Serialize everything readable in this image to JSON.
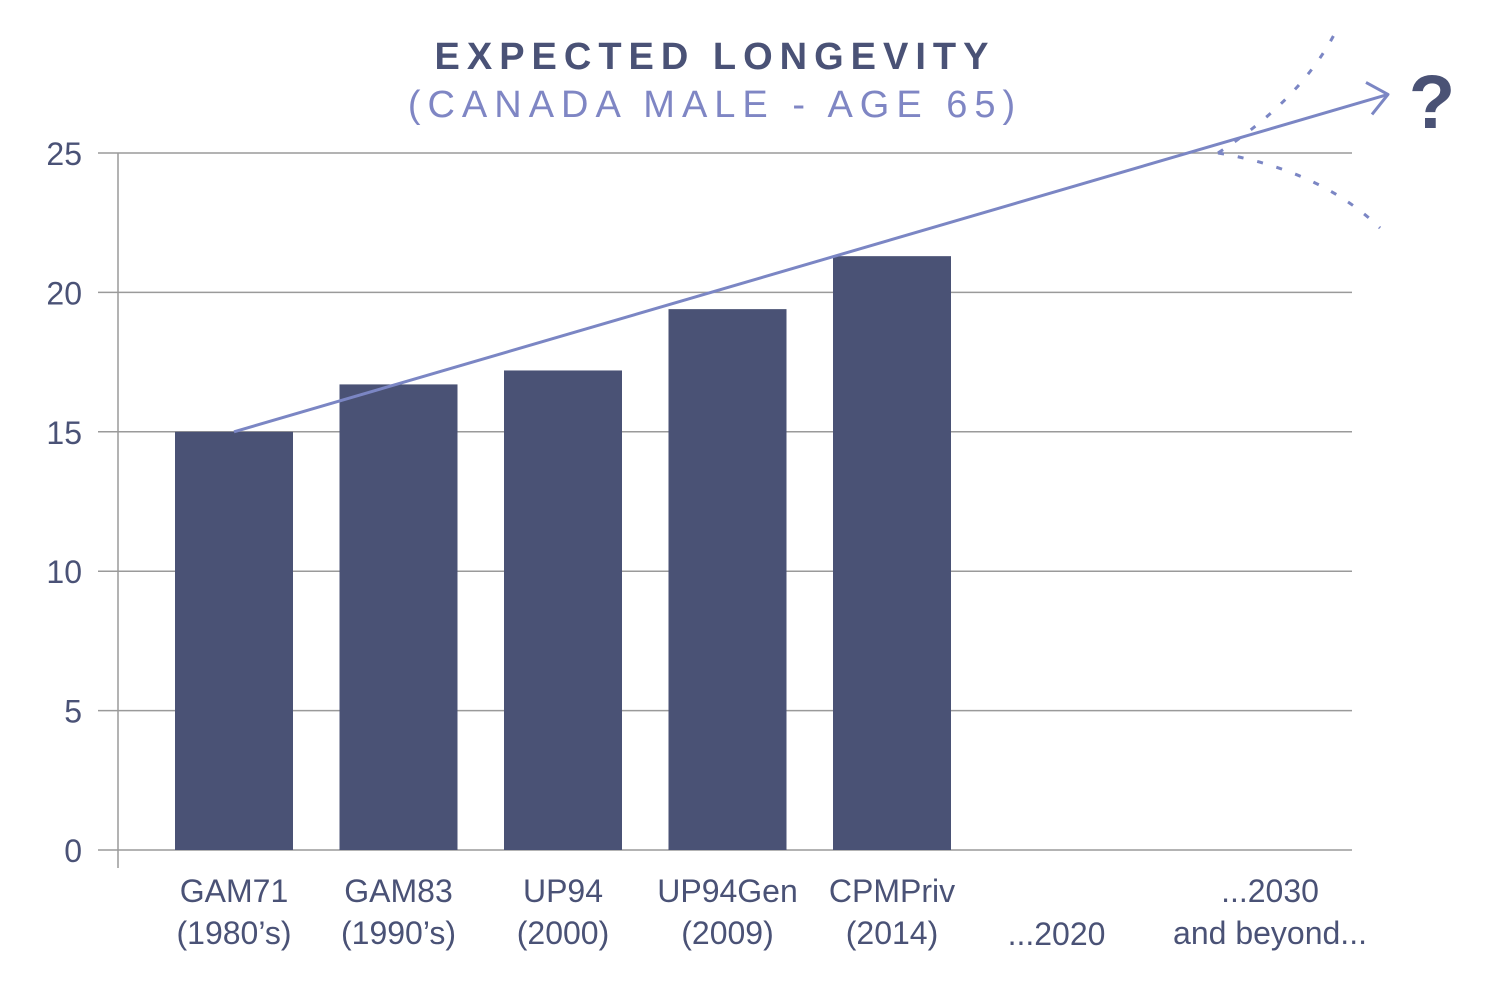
{
  "title": "EXPECTED LONGEVITY",
  "subtitle": "(CANADA MALE - AGE 65)",
  "colors": {
    "bar": "#4a5275",
    "trend": "#7b86c4",
    "grid": "#9a9a9a",
    "text": "#4a5276",
    "subtitle": "#7f86c4"
  },
  "chart_data": {
    "type": "bar",
    "title": "EXPECTED LONGEVITY",
    "subtitle": "(CANADA MALE - AGE 65)",
    "xlabel": "",
    "ylabel": "",
    "ylim": [
      0,
      25
    ],
    "yticks": [
      "0",
      "5",
      "10",
      "15",
      "20",
      "25"
    ],
    "grid": true,
    "legend": "none",
    "categories": [
      [
        "GAM71",
        "(1980’s)"
      ],
      [
        "GAM83",
        "(1990’s)"
      ],
      [
        "UP94",
        "(2000)"
      ],
      [
        "UP94Gen",
        "(2009)"
      ],
      [
        "CPMPriv",
        "(2014)"
      ],
      [
        "...2020"
      ],
      [
        "...2030",
        "and beyond..."
      ]
    ],
    "values": [
      15.0,
      16.7,
      17.2,
      19.4,
      21.3,
      null,
      null
    ],
    "trend": {
      "type": "line",
      "x": [
        "GAM71 (1980’s)",
        "...2030 and beyond..."
      ],
      "y": [
        15.0,
        27.1
      ],
      "arrow": true,
      "uncertainty_marker": "?"
    }
  }
}
